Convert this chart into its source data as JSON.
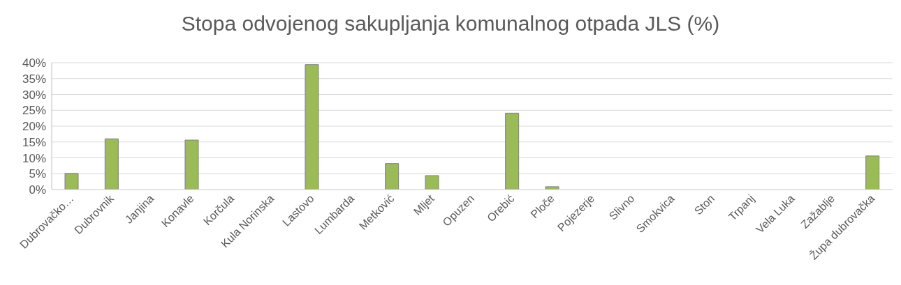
{
  "chart_data": {
    "type": "bar",
    "title": "Stopa odvojenog sakupljanja komunalnog otpada JLS (%)",
    "categories": [
      "Dubrovačko…",
      "Dubrovnik",
      "Janjina",
      "Konavle",
      "Korčula",
      "Kula Norinska",
      "Lastovo",
      "Lumbarda",
      "Metković",
      "Mljet",
      "Opuzen",
      "Orebić",
      "Ploče",
      "Pojezerje",
      "Slivno",
      "Smokvica",
      "Ston",
      "Trpanj",
      "Vela Luka",
      "Zažablje",
      "Župa dubrovačka"
    ],
    "values": [
      5.1,
      16,
      0,
      15.6,
      0,
      0,
      39.4,
      0,
      8.2,
      4.4,
      0,
      24.1,
      0.9,
      0,
      0,
      0,
      0,
      0,
      0,
      0,
      10.6
    ],
    "color": "#9bbb59",
    "ylim": [
      0,
      40
    ],
    "yticks": [
      {
        "value": 0,
        "label": "0%"
      },
      {
        "value": 5,
        "label": "5%"
      },
      {
        "value": 10,
        "label": "10%"
      },
      {
        "value": 15,
        "label": "15%"
      },
      {
        "value": 20,
        "label": "20%"
      },
      {
        "value": 25,
        "label": "25%"
      },
      {
        "value": 30,
        "label": "30%"
      },
      {
        "value": 35,
        "label": "35%"
      },
      {
        "value": 40,
        "label": "40%"
      }
    ],
    "grid": "y",
    "legend": false
  }
}
